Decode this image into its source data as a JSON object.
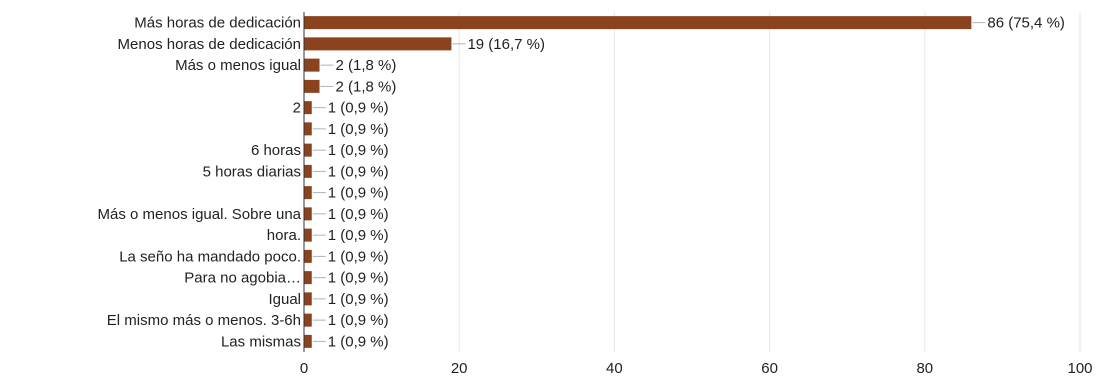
{
  "chart_data": {
    "type": "bar",
    "orientation": "horizontal",
    "categories": [
      [
        "Más horas de dedicación"
      ],
      [
        "Menos horas de dedicación"
      ],
      [
        "Más o menos igual"
      ],
      [
        ""
      ],
      [
        "2"
      ],
      [
        ""
      ],
      [
        "6 horas"
      ],
      [
        "5 horas diarias"
      ],
      [
        ""
      ],
      [
        "Más o menos igual. Sobre una",
        "hora."
      ],
      [
        ""
      ],
      [
        "La seño ha mandado poco.",
        "Para no agobia…"
      ],
      [
        ""
      ],
      [
        "Igual"
      ],
      [
        "El mismo más o menos. 3-6h"
      ],
      [
        "Las mismas"
      ]
    ],
    "values": [
      86,
      19,
      2,
      2,
      1,
      1,
      1,
      1,
      1,
      1,
      1,
      1,
      1,
      1,
      1,
      1
    ],
    "data_labels": [
      "86 (75,4 %)",
      "19 (16,7 %)",
      "2 (1,8 %)",
      "2 (1,8 %)",
      "1 (0,9 %)",
      "1 (0,9 %)",
      "1 (0,9 %)",
      "1 (0,9 %)",
      "1 (0,9 %)",
      "1 (0,9 %)",
      "1 (0,9 %)",
      "1 (0,9 %)",
      "1 (0,9 %)",
      "1 (0,9 %)",
      "1 (0,9 %)",
      "1 (0,9 %)"
    ],
    "xlim": [
      0,
      100
    ],
    "xticks": [
      0,
      20,
      40,
      60,
      80,
      100
    ],
    "grid": true,
    "colors": {
      "bar": "#8b421f",
      "grid": "#e6e6e6",
      "leader": "#b0b0b0",
      "axis": "#333333"
    }
  }
}
